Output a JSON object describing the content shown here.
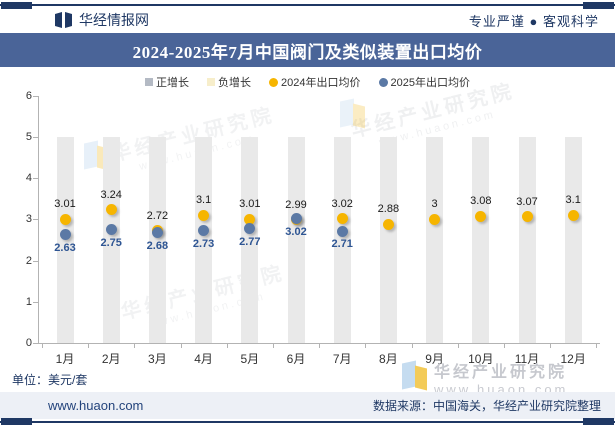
{
  "header": {
    "brand": "华经情报网",
    "tagline": "专业严谨 ● 客观科学"
  },
  "title": "2024-2025年7月中国阀门及类似装置出口均价",
  "legend": [
    {
      "label": "正增长",
      "marker": "square",
      "color": "#b4bac4"
    },
    {
      "label": "负增长",
      "marker": "square",
      "color": "#f7eecb"
    },
    {
      "label": "2024年出口均价",
      "marker": "circle",
      "color": "#f6b500"
    },
    {
      "label": "2025年出口均价",
      "marker": "circle",
      "color": "#5b79a5"
    }
  ],
  "chart_data": {
    "type": "combo-bar-scatter",
    "categories": [
      "1月",
      "2月",
      "3月",
      "4月",
      "5月",
      "6月",
      "7月",
      "8月",
      "9月",
      "10月",
      "11月",
      "12月"
    ],
    "series": [
      {
        "name": "正增长",
        "type": "bar",
        "color": "#e9e9e9",
        "bar_top": 5,
        "values": [
          5,
          5,
          5,
          5,
          5,
          5,
          5,
          5,
          5,
          5,
          5,
          5
        ]
      },
      {
        "name": "负增长",
        "type": "bar",
        "color": "#f7eecb",
        "values": []
      },
      {
        "name": "2024年出口均价",
        "type": "scatter",
        "color": "#f6b500",
        "values": [
          3.01,
          3.24,
          2.72,
          3.1,
          3.01,
          2.99,
          3.02,
          2.88,
          3,
          3.08,
          3.07,
          3.1
        ]
      },
      {
        "name": "2025年出口均价",
        "type": "scatter",
        "color": "#5b79a5",
        "values": [
          2.63,
          2.75,
          2.68,
          2.73,
          2.77,
          3.02,
          2.71,
          null,
          null,
          null,
          null,
          null
        ]
      }
    ],
    "ylim": [
      0,
      6
    ],
    "yticks": [
      0,
      1,
      2,
      3,
      4,
      5,
      6
    ],
    "grid": false,
    "legend_position": "top",
    "xlabel": "",
    "ylabel": ""
  },
  "unit_label": "单位：美元/套",
  "watermark": {
    "name": "华经产业研究院",
    "url": "www.huaon.com"
  },
  "footer": {
    "site": "www.huaon.com",
    "source": "数据来源：中国海关，华经产业研究院整理"
  },
  "colors": {
    "accent_navy": "#1f3864",
    "title_bar": "#4a6498",
    "bar_gray": "#e9e9e9",
    "neg_growth": "#f7eecb",
    "pos_growth_marker": "#b4bac4",
    "dot_2024": "#f6b500",
    "dot_2025": "#5b79a5",
    "label_2025": "#2e5593",
    "footer_bg": "#edf0f6"
  }
}
